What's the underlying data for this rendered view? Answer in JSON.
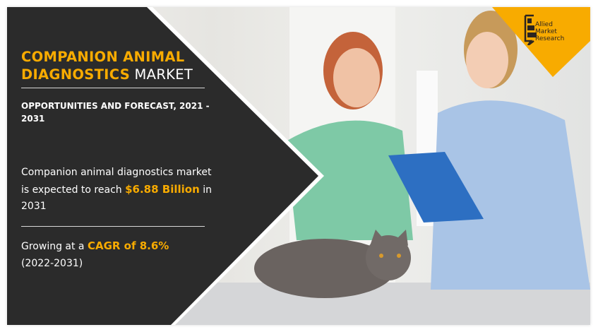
{
  "title": {
    "highlight_line1": "COMPANION ANIMAL",
    "highlight_line2": "DIAGNOSTICS",
    "plain": " MARKET"
  },
  "subtitle": "OPPORTUNITIES AND FORECAST, 2021 - 2031",
  "stat1": {
    "prefix": "Companion animal diagnostics market is expected to reach ",
    "value": "$6.88 Billion",
    "suffix": " in 2031"
  },
  "stat2": {
    "prefix": "Growing at a ",
    "value": "CAGR of 8.6%",
    "suffix": "(2022-2031)"
  },
  "logo": {
    "line1": "Allied",
    "line2": "Market",
    "line3": "Research"
  },
  "colors": {
    "accent": "#f8ab00",
    "panel": "#2b2b2b"
  }
}
